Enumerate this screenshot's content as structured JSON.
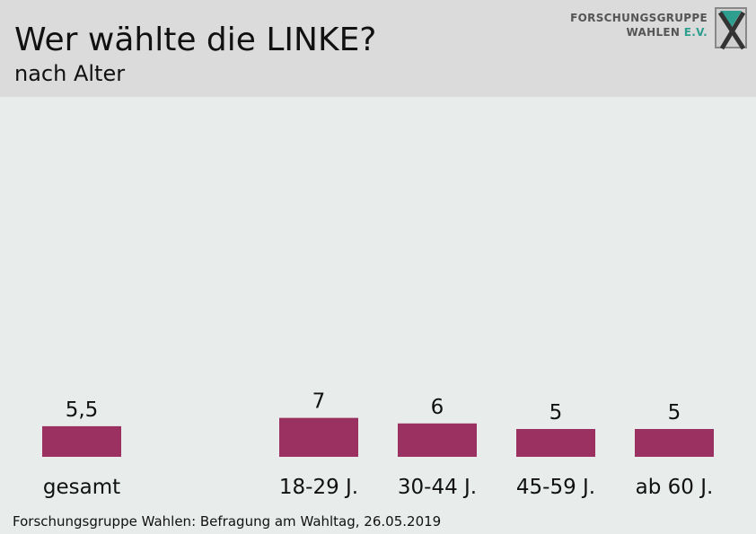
{
  "header": {
    "logo_line1": "FORSCHUNGSGRUPPE",
    "logo_line2": "WAHLEN",
    "logo_line2_suffix": "E.V."
  },
  "chart_data": {
    "type": "bar",
    "title": "Wer wählte die LINKE?",
    "subtitle": "nach Alter",
    "categories": [
      "gesamt",
      "18-29 J.",
      "30-44 J.",
      "45-59 J.",
      "ab 60 J."
    ],
    "values": [
      5.5,
      7,
      6,
      5,
      5
    ],
    "value_labels": [
      "5,5",
      "7",
      "6",
      "5",
      "5"
    ],
    "bar_color": "#9b3161"
  },
  "source": "Forschungsgruppe Wahlen: Befragung am Wahltag, 26.05.2019"
}
